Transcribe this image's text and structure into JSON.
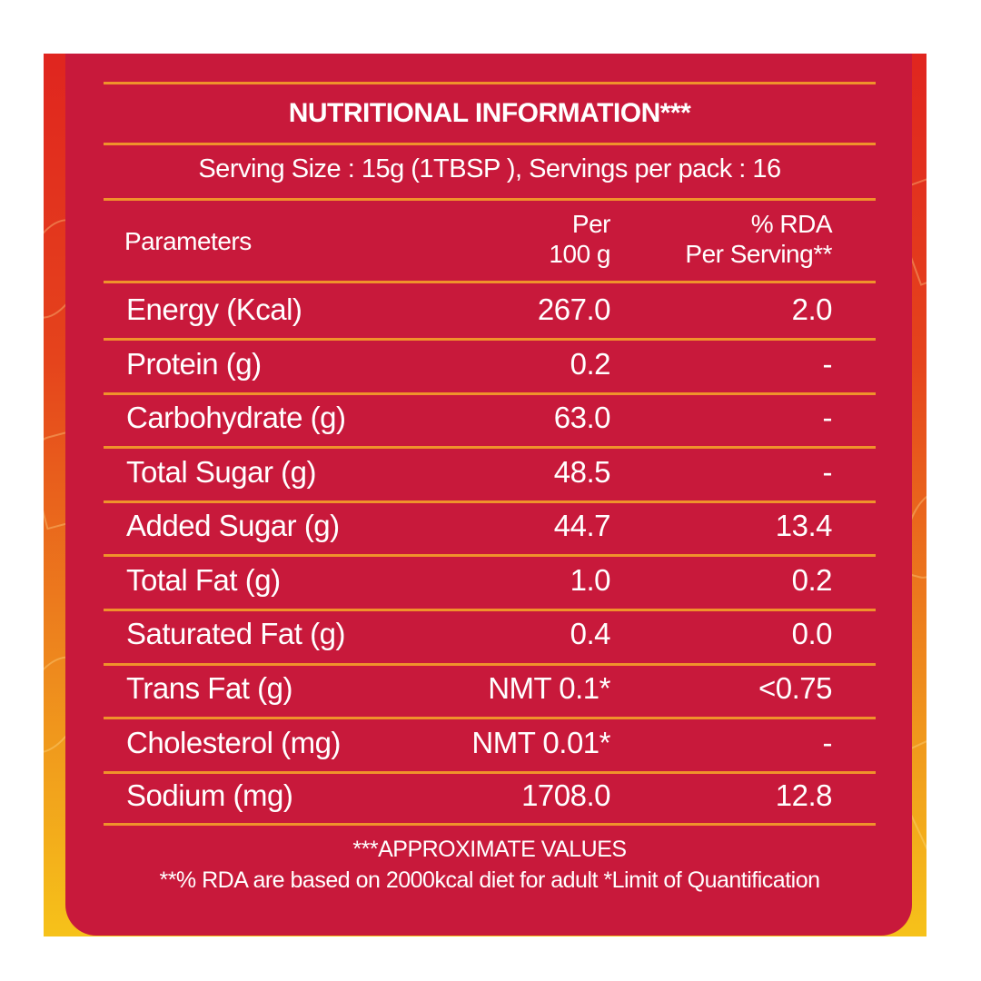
{
  "label": {
    "title": "NUTRITIONAL INFORMATION***",
    "serving_info": "Serving Size : 15g (1TBSP ),  Servings per pack : 16",
    "headers": {
      "parameters": "Parameters",
      "per_line1": "Per",
      "per_line2": "100 g",
      "rda_line1": "% RDA",
      "rda_line2": "Per Serving**"
    },
    "rows": [
      {
        "name": "Energy (Kcal)",
        "per_100g": "267.0",
        "rda": "2.0"
      },
      {
        "name": "Protein (g)",
        "per_100g": "0.2",
        "rda": "-"
      },
      {
        "name": "Carbohydrate (g)",
        "per_100g": "63.0",
        "rda": "-"
      },
      {
        "name": "Total Sugar (g)",
        "per_100g": "48.5",
        "rda": "-"
      },
      {
        "name": "Added Sugar (g)",
        "per_100g": "44.7",
        "rda": "13.4"
      },
      {
        "name": "Total Fat (g)",
        "per_100g": "1.0",
        "rda": "0.2"
      },
      {
        "name": "Saturated Fat (g)",
        "per_100g": "0.4",
        "rda": "0.0"
      },
      {
        "name": "Trans Fat (g)",
        "per_100g": "NMT 0.1*",
        "rda": "<0.75"
      },
      {
        "name": "Cholesterol (mg)",
        "per_100g": "NMT 0.01*",
        "rda": "-"
      },
      {
        "name": "Sodium (mg)",
        "per_100g": "1708.0",
        "rda": "12.8"
      }
    ],
    "footnote_1": "***APPROXIMATE VALUES",
    "footnote_2": "**% RDA are based on 2000kcal diet for adult *Limit of Quantification"
  },
  "colors": {
    "panel": "#c8193b",
    "rule": "#f0922b",
    "text": "#ffffff",
    "frame_top": "#e0251f",
    "frame_bottom": "#f6c21a"
  }
}
